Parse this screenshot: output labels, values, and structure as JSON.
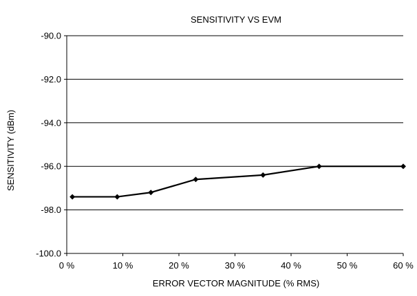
{
  "chart_data": {
    "type": "line",
    "title": "SENSITIVITY VS EVM",
    "xlabel": "ERROR VECTOR MAGNITUDE (% RMS)",
    "ylabel": "SENSITIVITY (dBm)",
    "xlim": [
      0,
      60
    ],
    "ylim": [
      -100,
      -90
    ],
    "x_ticks": [
      0,
      10,
      20,
      30,
      40,
      50,
      60
    ],
    "x_tick_labels": [
      "0 %",
      "10 %",
      "20 %",
      "30 %",
      "40 %",
      "50 %",
      "60 %"
    ],
    "y_ticks": [
      -90,
      -92,
      -94,
      -96,
      -98,
      -100
    ],
    "y_tick_labels": [
      "-90.0",
      "-92.0",
      "-94.0",
      "-96.0",
      "-98.0",
      "-100.0"
    ],
    "grid": "horizontal",
    "legend": "none",
    "series": [
      {
        "x": [
          1,
          9,
          15,
          23,
          35,
          45,
          60
        ],
        "y": [
          -97.4,
          -97.4,
          -97.2,
          -96.6,
          -96.4,
          -96.0,
          -96.0
        ],
        "color": "#000000",
        "marker": "diamond"
      }
    ]
  }
}
